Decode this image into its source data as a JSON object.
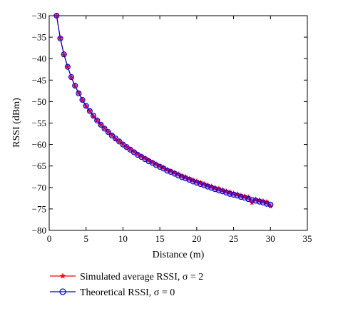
{
  "chart_data": {
    "type": "line",
    "title": "",
    "xlabel": "Distance (m)",
    "ylabel": "RSSI (dBm)",
    "xlim": [
      0,
      35
    ],
    "ylim": [
      -80,
      -30
    ],
    "xticks": [
      "0",
      "5",
      "10",
      "15",
      "20",
      "25",
      "30",
      "35"
    ],
    "yticks": [
      "−30",
      "−35",
      "−40",
      "−45",
      "−50",
      "−55",
      "−60",
      "−65",
      "−70",
      "−75",
      "−80"
    ],
    "grid": false,
    "legend_position": "bottom-left, outside plot",
    "series": [
      {
        "name": "Simulated average RSSI, σ = 2",
        "color": "#ff0000",
        "marker": "star",
        "x": [
          1.0,
          1.5,
          2.0,
          2.5,
          3.0,
          3.5,
          4.0,
          4.5,
          5.0,
          5.5,
          6.0,
          6.5,
          7.0,
          7.5,
          8.0,
          8.5,
          9.0,
          9.5,
          10.0,
          10.5,
          11.0,
          11.5,
          12.0,
          12.5,
          13.0,
          13.5,
          14.0,
          14.5,
          15.0,
          15.5,
          16.0,
          16.5,
          17.0,
          17.5,
          18.0,
          18.5,
          19.0,
          19.5,
          20.0,
          20.5,
          21.0,
          21.5,
          22.0,
          22.5,
          23.0,
          23.5,
          24.0,
          24.5,
          25.0,
          25.5,
          26.0,
          26.5,
          27.0,
          27.5,
          28.0,
          28.5,
          29.0,
          29.5,
          30.0
        ],
        "y": [
          -30.0,
          -35.2,
          -39.1,
          -41.9,
          -44.4,
          -46.4,
          -47.9,
          -49.7,
          -51.1,
          -52.2,
          -53.5,
          -54.4,
          -55.4,
          -56.2,
          -57.1,
          -57.8,
          -58.7,
          -59.3,
          -59.9,
          -60.6,
          -61.1,
          -61.7,
          -62.2,
          -62.7,
          -63.1,
          -63.6,
          -64.1,
          -64.5,
          -64.9,
          -65.3,
          -65.8,
          -66.1,
          -66.5,
          -66.8,
          -67.2,
          -67.5,
          -67.9,
          -68.2,
          -68.5,
          -68.8,
          -69.1,
          -69.4,
          -69.7,
          -70.0,
          -70.2,
          -70.5,
          -70.8,
          -71.0,
          -71.3,
          -71.5,
          -71.8,
          -72.0,
          -72.2,
          -73.6,
          -72.7,
          -72.9,
          -73.1,
          -73.3,
          -74.4
        ]
      },
      {
        "name": "Theoretical RSSI, σ = 0",
        "color": "#0000cc",
        "marker": "circle",
        "x": [
          1.0,
          1.5,
          2.0,
          2.5,
          3.0,
          3.5,
          4.0,
          4.5,
          5.0,
          5.5,
          6.0,
          6.5,
          7.0,
          7.5,
          8.0,
          8.5,
          9.0,
          9.5,
          10.0,
          10.5,
          11.0,
          11.5,
          12.0,
          12.5,
          13.0,
          13.5,
          14.0,
          14.5,
          15.0,
          15.5,
          16.0,
          16.5,
          17.0,
          17.5,
          18.0,
          18.5,
          19.0,
          19.5,
          20.0,
          20.5,
          21.0,
          21.5,
          22.0,
          22.5,
          23.0,
          23.5,
          24.0,
          24.5,
          25.0,
          25.5,
          26.0,
          26.5,
          27.0,
          27.5,
          28.0,
          28.5,
          29.0,
          29.5,
          30.0
        ],
        "y": [
          -30.0,
          -35.3,
          -39.0,
          -41.9,
          -44.3,
          -46.3,
          -48.1,
          -49.6,
          -51.0,
          -52.2,
          -53.3,
          -54.4,
          -55.4,
          -56.3,
          -57.1,
          -57.9,
          -58.6,
          -59.3,
          -60.0,
          -60.6,
          -61.2,
          -61.8,
          -62.4,
          -62.9,
          -63.4,
          -63.9,
          -64.3,
          -64.8,
          -65.2,
          -65.6,
          -66.1,
          -66.4,
          -66.8,
          -67.2,
          -67.6,
          -67.9,
          -68.2,
          -68.6,
          -68.9,
          -69.2,
          -69.5,
          -69.8,
          -70.1,
          -70.4,
          -70.7,
          -70.9,
          -71.2,
          -71.5,
          -71.7,
          -71.9,
          -72.2,
          -72.4,
          -72.7,
          -72.9,
          -73.1,
          -73.3,
          -73.5,
          -73.8,
          -74.0
        ]
      }
    ]
  }
}
